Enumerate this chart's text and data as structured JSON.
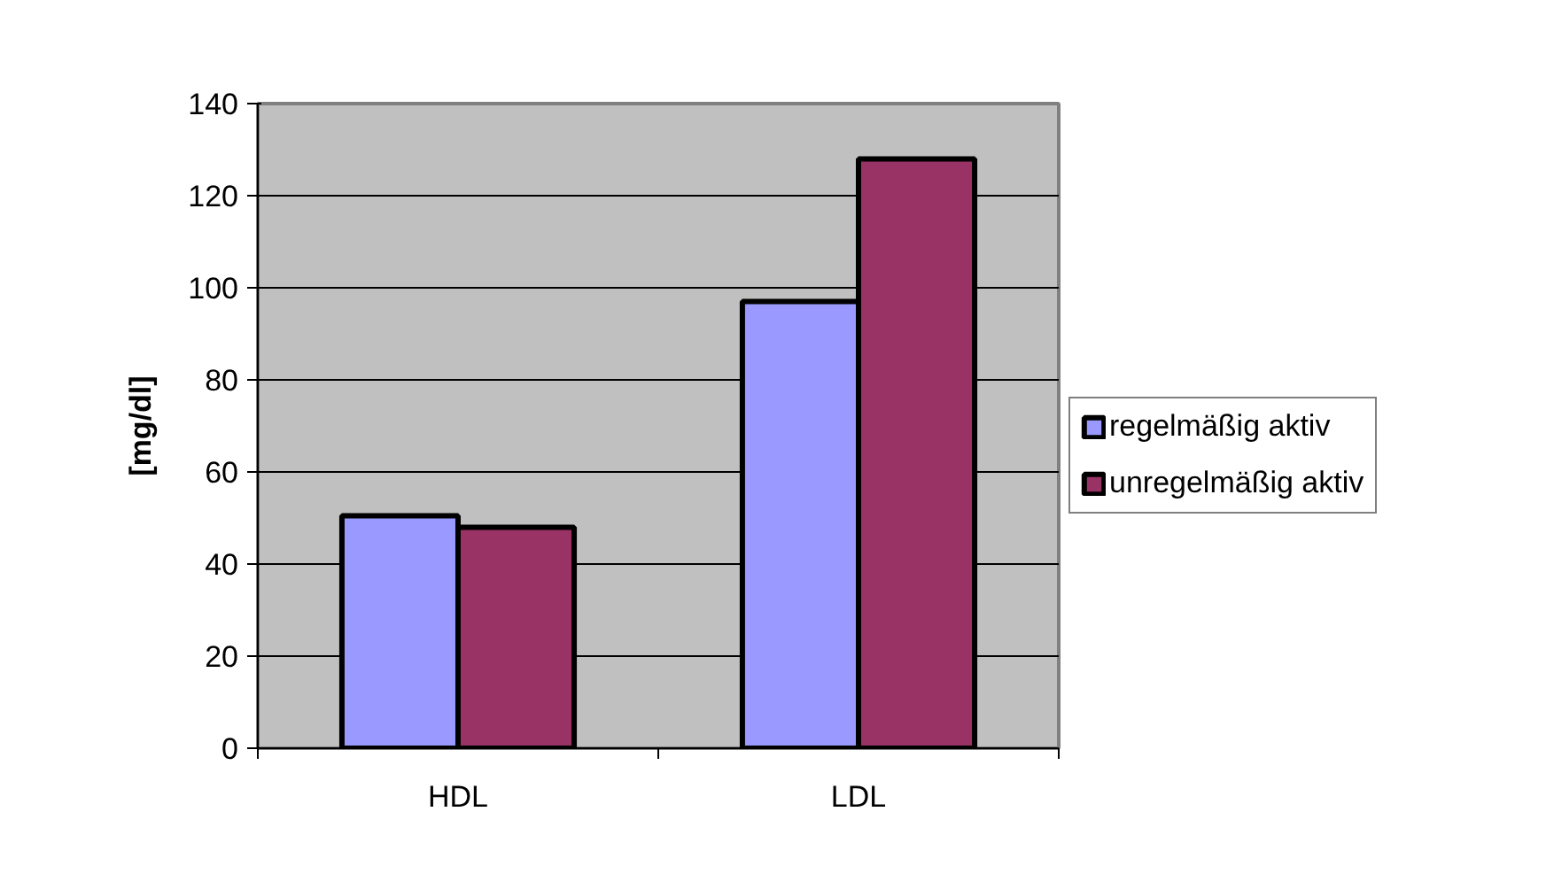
{
  "chart_data": {
    "type": "bar",
    "ylabel": "[mg/dl]",
    "categories": [
      "HDL",
      "LDL"
    ],
    "series": [
      {
        "name": "regelmäßig aktiv",
        "color": "#9999ff",
        "values": [
          50.5,
          97
        ]
      },
      {
        "name": "unregelmäßig aktiv",
        "color": "#993366",
        "values": [
          48,
          128
        ]
      }
    ],
    "ylim": [
      0,
      140
    ],
    "yticks": [
      0,
      20,
      40,
      60,
      80,
      100,
      120,
      140
    ],
    "grid": "y",
    "legend": "right"
  }
}
